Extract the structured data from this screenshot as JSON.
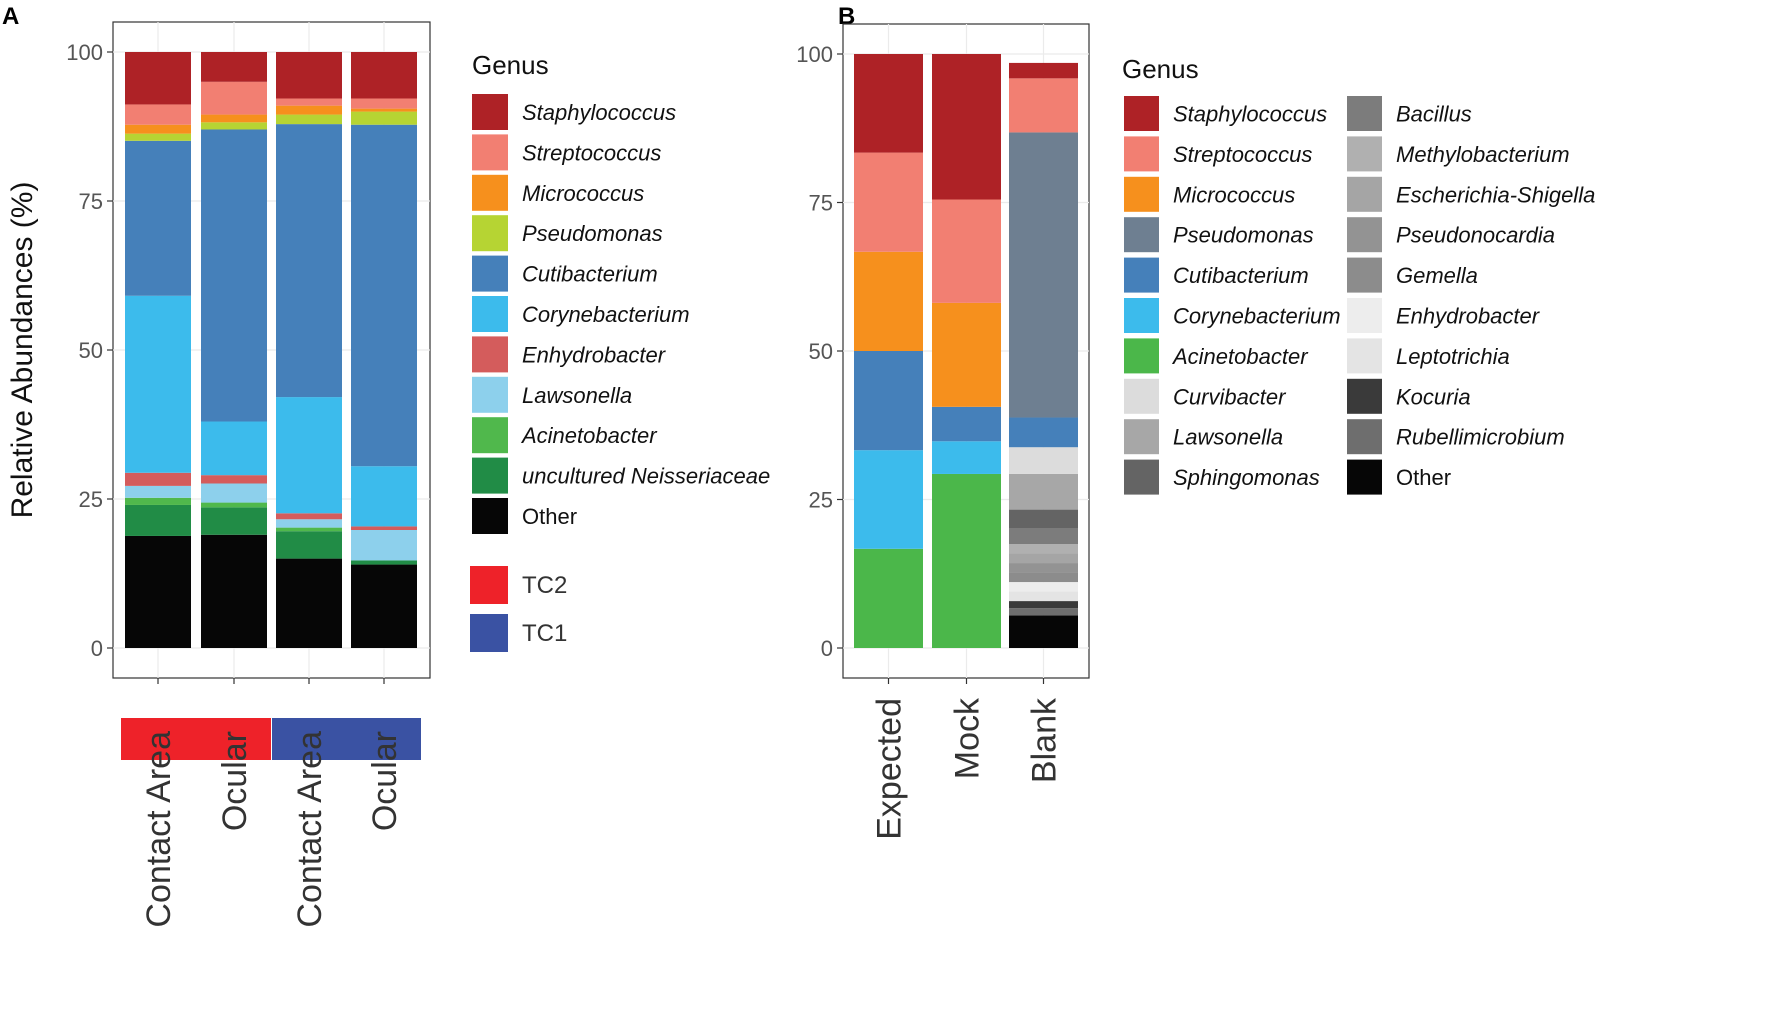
{
  "panels": {
    "a": {
      "letter": "A"
    },
    "b": {
      "letter": "B"
    }
  },
  "chart_data": [
    {
      "type": "bar",
      "stacked": true,
      "panel": "A",
      "ylabel": "Relative Abundances (%)",
      "xlabel": "",
      "ylim": [
        0,
        100
      ],
      "yticks": [
        0,
        25,
        50,
        75,
        100
      ],
      "categories": [
        "Contact Area",
        "Ocular",
        "Contact Area",
        "Ocular"
      ],
      "group_colors": [
        "#ee2229",
        "#ee2229",
        "#3a52a3",
        "#3a52a3"
      ],
      "legend_title": "Genus",
      "series": [
        {
          "name": "Other",
          "color": "#060606",
          "italic": false,
          "values": [
            18.8,
            19.0,
            15.0,
            14.0
          ]
        },
        {
          "name": "uncultured Neisseriaceae",
          "color": "#218c46",
          "italic": true,
          "values": [
            5.2,
            4.6,
            4.6,
            0.7
          ]
        },
        {
          "name": "Acinetobacter",
          "color": "#50b84c",
          "italic": true,
          "values": [
            1.2,
            0.8,
            0.6,
            0.0
          ]
        },
        {
          "name": "Lawsonella",
          "color": "#8dd0ec",
          "italic": true,
          "values": [
            2.0,
            3.2,
            1.4,
            5.1
          ]
        },
        {
          "name": "Enhydrobacter",
          "color": "#d45c5c",
          "italic": true,
          "values": [
            2.2,
            1.4,
            1.0,
            0.6
          ]
        },
        {
          "name": "Corynebacterium",
          "color": "#3cbbec",
          "italic": true,
          "values": [
            29.7,
            9.0,
            19.5,
            10.1
          ]
        },
        {
          "name": "Cutibacterium",
          "color": "#4580ba",
          "italic": true,
          "values": [
            26.0,
            49.0,
            45.8,
            57.3
          ]
        },
        {
          "name": "Pseudomonas",
          "color": "#b6d433",
          "italic": true,
          "values": [
            1.2,
            1.2,
            1.6,
            2.2
          ]
        },
        {
          "name": "Micrococcus",
          "color": "#f6901d",
          "italic": true,
          "values": [
            1.5,
            1.3,
            1.5,
            0.5
          ]
        },
        {
          "name": "Streptococcus",
          "color": "#f27f72",
          "italic": true,
          "values": [
            3.4,
            5.5,
            1.2,
            1.7
          ]
        },
        {
          "name": "Staphylococcus",
          "color": "#ae2226",
          "italic": true,
          "values": [
            8.8,
            5.0,
            7.8,
            7.8
          ]
        }
      ],
      "group_legend": [
        {
          "name": "TC2",
          "color": "#ee2229"
        },
        {
          "name": "TC1",
          "color": "#3a52a3"
        }
      ]
    },
    {
      "type": "bar",
      "stacked": true,
      "panel": "B",
      "ylabel": "",
      "xlabel": "",
      "ylim": [
        0,
        100
      ],
      "yticks": [
        0,
        25,
        50,
        75,
        100
      ],
      "categories": [
        "Expected",
        "Mock",
        "Blank"
      ],
      "legend_title": "Genus",
      "series": [
        {
          "name": "Other",
          "color": "#060606",
          "italic": false,
          "values": [
            0,
            0,
            5.5
          ]
        },
        {
          "name": "Rubellimicrobium",
          "color": "#6e6e6e",
          "italic": true,
          "values": [
            0,
            0,
            1.2
          ]
        },
        {
          "name": "Kocuria",
          "color": "#3a3a3a",
          "italic": true,
          "values": [
            0,
            0,
            1.2
          ]
        },
        {
          "name": "Leptotrichia",
          "color": "#e4e4e4",
          "italic": true,
          "values": [
            0,
            0,
            1.6
          ]
        },
        {
          "name": "Enhydrobacter",
          "color": "#ededed",
          "italic": true,
          "values": [
            0,
            0,
            1.6
          ]
        },
        {
          "name": "Gemella",
          "color": "#8c8c8c",
          "italic": true,
          "values": [
            0,
            0,
            1.6
          ]
        },
        {
          "name": "Pseudonocardia",
          "color": "#939393",
          "italic": true,
          "values": [
            0,
            0,
            1.6
          ]
        },
        {
          "name": "Escherichia-Shigella",
          "color": "#a5a5a5",
          "italic": true,
          "values": [
            0,
            0,
            1.6
          ]
        },
        {
          "name": "Methylobacterium",
          "color": "#b0b0b0",
          "italic": true,
          "values": [
            0,
            0,
            1.6
          ]
        },
        {
          "name": "Bacillus",
          "color": "#7c7c7c",
          "italic": true,
          "values": [
            0,
            0,
            2.7
          ]
        },
        {
          "name": "Sphingomonas",
          "color": "#646464",
          "italic": true,
          "values": [
            0,
            0,
            3.1
          ]
        },
        {
          "name": "Lawsonella",
          "color": "#a7a7a7",
          "italic": true,
          "values": [
            0,
            0,
            6.0
          ]
        },
        {
          "name": "Curvibacter",
          "color": "#dcdcdc",
          "italic": true,
          "values": [
            0,
            0,
            4.5
          ]
        },
        {
          "name": "Acinetobacter",
          "color": "#4bb74a",
          "italic": true,
          "values": [
            16.7,
            29.3,
            0
          ]
        },
        {
          "name": "Corynebacterium",
          "color": "#3cbbec",
          "italic": true,
          "values": [
            16.6,
            5.5,
            0
          ]
        },
        {
          "name": "Cutibacterium",
          "color": "#4580ba",
          "italic": true,
          "values": [
            16.7,
            5.8,
            5.0
          ]
        },
        {
          "name": "Pseudomonas",
          "color": "#6e7f91",
          "italic": true,
          "values": [
            0,
            0,
            48.0
          ]
        },
        {
          "name": "Micrococcus",
          "color": "#f6901d",
          "italic": true,
          "values": [
            16.7,
            17.5,
            0
          ]
        },
        {
          "name": "Streptococcus",
          "color": "#f27f72",
          "italic": true,
          "values": [
            16.7,
            17.4,
            9.1
          ]
        },
        {
          "name": "Staphylococcus",
          "color": "#ae2226",
          "italic": true,
          "values": [
            16.6,
            24.5,
            2.6
          ]
        }
      ],
      "legend_columns": [
        [
          "Staphylococcus",
          "Streptococcus",
          "Micrococcus",
          "Pseudomonas",
          "Cutibacterium",
          "Corynebacterium",
          "Acinetobacter",
          "Curvibacter",
          "Lawsonella",
          "Sphingomonas"
        ],
        [
          "Bacillus",
          "Methylobacterium",
          "Escherichia-Shigella",
          "Pseudonocardia",
          "Gemella",
          "Enhydrobacter",
          "Leptotrichia",
          "Kocuria",
          "Rubellimicrobium",
          "Other"
        ]
      ]
    }
  ]
}
